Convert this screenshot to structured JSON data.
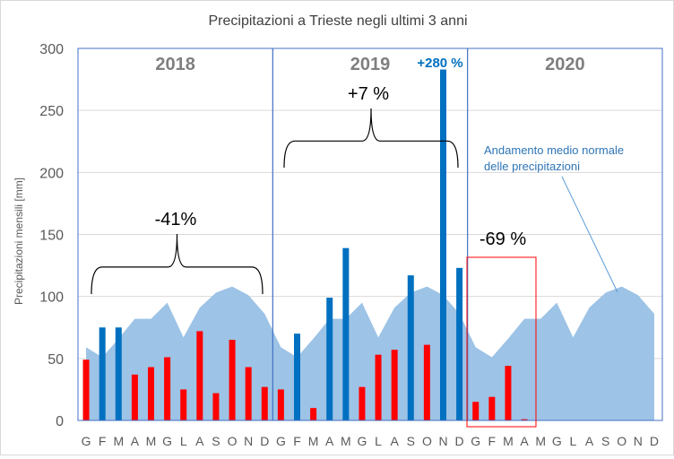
{
  "chart_data": {
    "type": "bar",
    "title": "Precipitazioni a Trieste negli ultimi 3 anni",
    "ylabel": "Precipitazioni mensili [mm]",
    "xlabel": "",
    "ylim": [
      0,
      300
    ],
    "yticks": [
      0,
      50,
      100,
      150,
      200,
      250,
      300
    ],
    "grid": true,
    "x": [
      "G",
      "F",
      "M",
      "A",
      "M",
      "G",
      "L",
      "A",
      "S",
      "O",
      "N",
      "D",
      "G",
      "F",
      "M",
      "A",
      "M",
      "G",
      "L",
      "A",
      "S",
      "O",
      "N",
      "D",
      "G",
      "F",
      "M",
      "A",
      "M",
      "G",
      "L",
      "A",
      "S",
      "O",
      "N",
      "D"
    ],
    "years": [
      {
        "label": "2018",
        "color": "#7f7f7f"
      },
      {
        "label": "2019",
        "color": "#7f7f7f"
      },
      {
        "label": "2020",
        "color": "#7f7f7f"
      }
    ],
    "series": [
      {
        "color": "#ff0000",
        "values": [
          49,
          null,
          null,
          37,
          43,
          51,
          25,
          72,
          22,
          65,
          43,
          27,
          25,
          null,
          10,
          null,
          null,
          27,
          53,
          57,
          null,
          61,
          null,
          null,
          15,
          19,
          44,
          1,
          null,
          null,
          null,
          null,
          null,
          null,
          null,
          null
        ]
      },
      {
        "color": "#0070c0",
        "values": [
          null,
          75,
          75,
          null,
          null,
          null,
          null,
          null,
          null,
          null,
          null,
          null,
          null,
          70,
          null,
          99,
          139,
          null,
          null,
          null,
          117,
          null,
          283,
          123,
          null,
          null,
          null,
          null,
          null,
          null,
          null,
          null,
          null,
          null,
          null,
          null
        ]
      },
      {
        "name": "Andamento medio normale delle precipitazioni",
        "type": "area",
        "color": "#9dc3e6",
        "values": [
          59,
          51,
          66,
          82,
          82,
          95,
          67,
          91,
          103,
          108,
          101,
          86,
          59,
          51,
          66,
          82,
          82,
          95,
          67,
          91,
          103,
          108,
          101,
          86,
          59,
          51,
          66,
          82,
          82,
          95,
          67,
          91,
          103,
          108,
          101,
          86
        ]
      }
    ],
    "annotations": [
      {
        "text": "-41%",
        "color": "#000000"
      },
      {
        "text": "+7 %",
        "color": "#000000"
      },
      {
        "text": "+280 %",
        "color": "#0070c0"
      },
      {
        "text": "-69 %",
        "color": "#000000"
      },
      {
        "text": "Andamento medio normale",
        "color": "#2e75b6"
      },
      {
        "text": "delle precipitazioni",
        "color": "#2e75b6"
      }
    ]
  }
}
